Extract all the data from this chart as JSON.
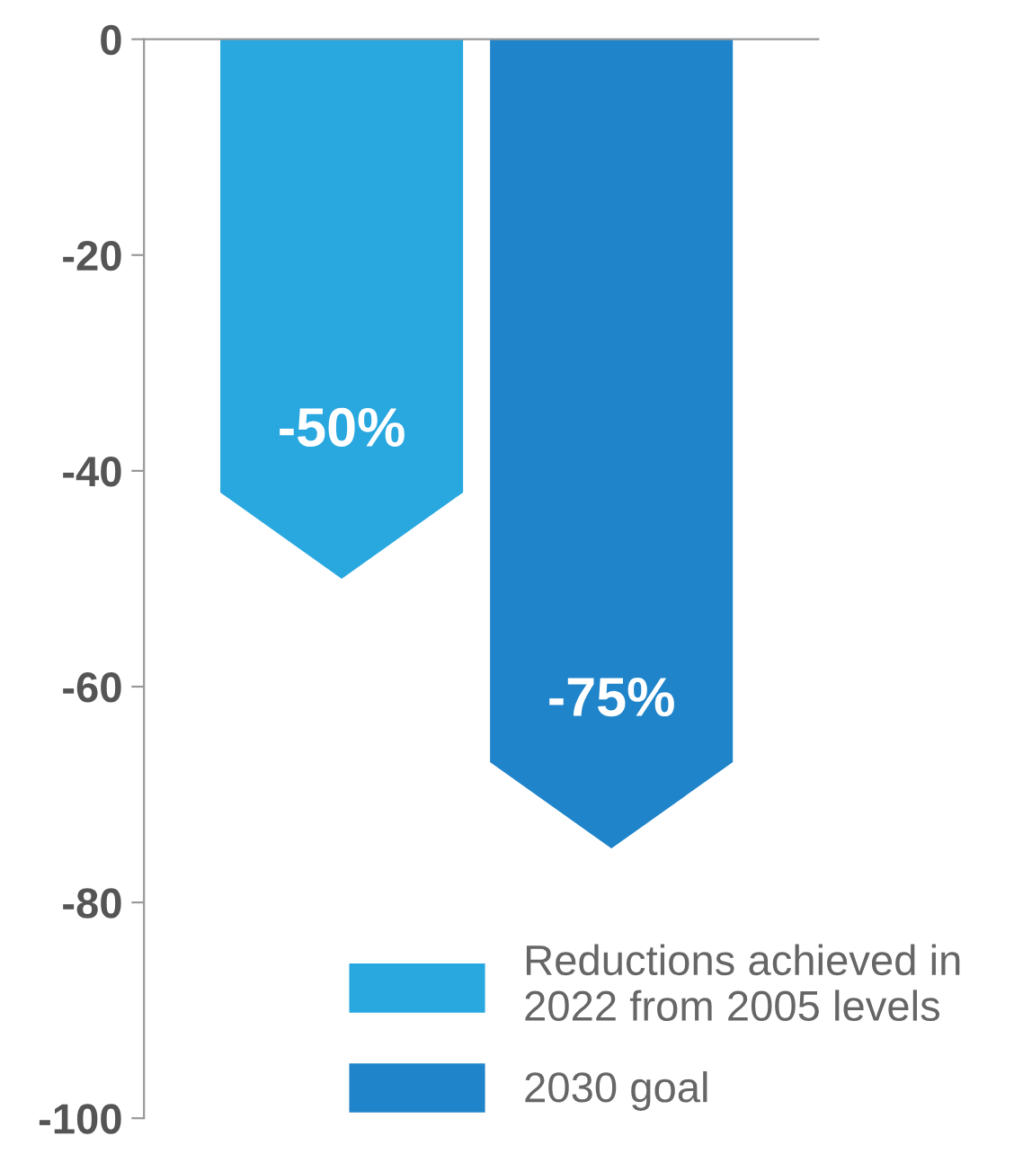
{
  "chart_data": {
    "type": "bar",
    "categories": [
      null,
      null
    ],
    "series": [
      {
        "name": "Reductions achieved in\n2022 from 2005 levels",
        "color": "#29a8e0",
        "values": [
          -50,
          null
        ],
        "value_labels": [
          "-50%",
          null
        ]
      },
      {
        "name": "2030 goal",
        "color": "#1f84c9",
        "values": [
          null,
          -75
        ],
        "value_labels": [
          null,
          "-75%"
        ]
      }
    ],
    "ylim": [
      -100,
      0
    ],
    "yticks": [
      0,
      -20,
      -40,
      -60,
      -80,
      -100
    ],
    "grid": false,
    "legend": "bottom right"
  }
}
